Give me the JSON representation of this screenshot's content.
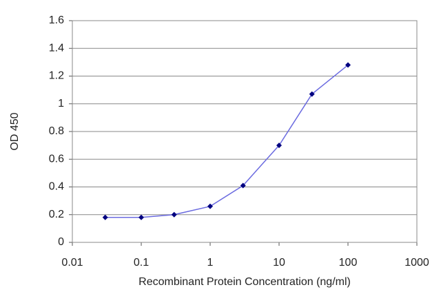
{
  "chart_data": {
    "type": "line",
    "x_label": "Recombinant Protein Concentration (ng/ml)",
    "y_label": "OD 450",
    "x": [
      0.03,
      0.1,
      0.3,
      1,
      3,
      10,
      30,
      100
    ],
    "series": [
      {
        "color": "#000080",
        "line_color": "#6b6be0",
        "values": [
          0.18,
          0.18,
          0.2,
          0.26,
          0.41,
          0.7,
          1.07,
          1.28
        ]
      }
    ],
    "xscale": "log",
    "xlim": [
      0.01,
      1000
    ],
    "xticks": [
      0.01,
      0.1,
      1,
      10,
      100,
      1000
    ],
    "ylim": [
      0,
      1.6
    ],
    "yticks": [
      0,
      0.2,
      0.4,
      0.6,
      0.8,
      1,
      1.2,
      1.4,
      1.6
    ],
    "grid": "y"
  }
}
